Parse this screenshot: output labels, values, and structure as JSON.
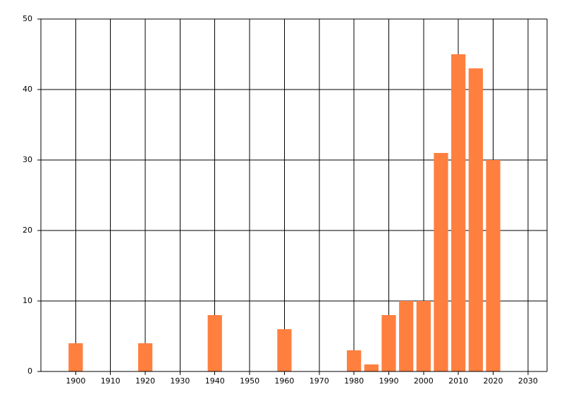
{
  "chart_data": {
    "type": "bar",
    "x": [
      1900,
      1920,
      1940,
      1960,
      1980,
      1985,
      1990,
      1995,
      2000,
      2005,
      2010,
      2015,
      2020
    ],
    "values": [
      4,
      4,
      8,
      6,
      3,
      1,
      8,
      10,
      10,
      31,
      45,
      43,
      30
    ],
    "color": "#ff7f3f",
    "xlim": [
      1890,
      2035.5
    ],
    "xticks": [
      1900,
      1910,
      1920,
      1930,
      1940,
      1950,
      1960,
      1970,
      1980,
      1990,
      2000,
      2010,
      2020,
      2030
    ],
    "ylim": [
      0,
      50
    ],
    "yticks": [
      0,
      10,
      20,
      30,
      40,
      50
    ],
    "grid": true
  }
}
